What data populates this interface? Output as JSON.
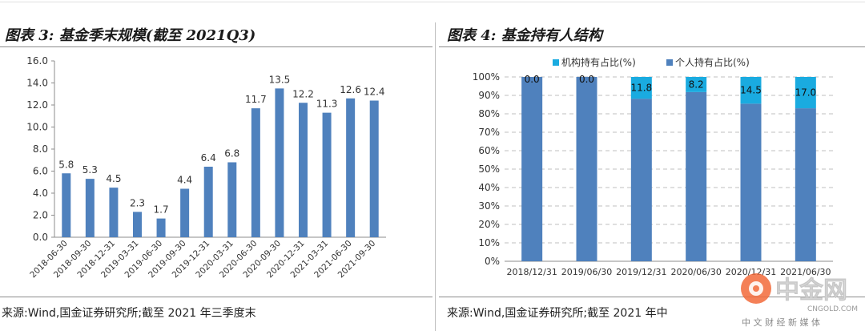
{
  "left": {
    "title": "图表 3: 基金季末规模(截至 2021Q3)",
    "source": "来源:Wind,国金证券研究所;截至 2021 年三季度末"
  },
  "right": {
    "title": "图表 4: 基金持有人结构",
    "source": "来源:Wind,国金证券研究所;截至 2021 年中"
  },
  "watermark": {
    "brand": "中金网",
    "domain": "CNGOLD.COM",
    "tagline": "中 文 财 经 新 媒 体"
  },
  "colors": {
    "bar": "#4f81bd",
    "institution": "#1aabe0",
    "grid": "#bfbfbf"
  },
  "chart_data": [
    {
      "type": "bar",
      "title": "图表 3: 基金季末规模(截至 2021Q3)",
      "categories": [
        "2018-06-30",
        "2018-09-30",
        "2018-12-31",
        "2019-03-31",
        "2019-06-30",
        "2019-09-30",
        "2019-12-31",
        "2020-03-31",
        "2020-06-30",
        "2020-09-30",
        "2020-12-31",
        "2021-03-31",
        "2021-06-30",
        "2021-09-30"
      ],
      "values": [
        5.8,
        5.3,
        4.5,
        2.3,
        1.7,
        4.4,
        6.4,
        6.8,
        11.7,
        13.5,
        12.2,
        11.3,
        12.6,
        12.4
      ],
      "data_labels": [
        "5.8",
        "5.3",
        "4.5",
        "2.3",
        "1.7",
        "4.4",
        "6.4",
        "6.8",
        "11.7",
        "13.5",
        "12.2",
        "11.3",
        "12.6",
        "12.4"
      ],
      "ylim": [
        0,
        16
      ],
      "yticks": [
        "0.0",
        "2.0",
        "4.0",
        "6.0",
        "8.0",
        "10.0",
        "12.0",
        "14.0",
        "16.0"
      ],
      "grid": false
    },
    {
      "type": "bar",
      "stacked": true,
      "title": "图表 4: 基金持有人结构",
      "categories": [
        "2018/12/31",
        "2019/06/30",
        "2019/12/31",
        "2020/06/30",
        "2020/12/31",
        "2021/06/30"
      ],
      "series": [
        {
          "name": "个人持有占比(%)",
          "values": [
            100,
            100,
            88.2,
            91.8,
            85.5,
            83.0
          ]
        },
        {
          "name": "机构持有占比(%)",
          "values": [
            0.0,
            0.0,
            11.8,
            8.2,
            14.5,
            17.0
          ]
        }
      ],
      "data_labels": [
        "0.0",
        "0.0",
        "11.8",
        "8.2",
        "14.5",
        "17.0"
      ],
      "ylim": [
        0,
        100
      ],
      "yticks": [
        "0%",
        "10%",
        "20%",
        "30%",
        "40%",
        "50%",
        "60%",
        "70%",
        "80%",
        "90%",
        "100%"
      ],
      "legend": [
        "机构持有占比(%)",
        "个人持有占比(%)"
      ],
      "legend_position": "top",
      "grid": true
    }
  ]
}
